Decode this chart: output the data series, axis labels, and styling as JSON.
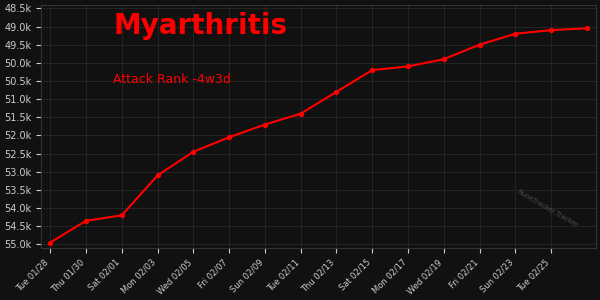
{
  "title": "Myarthritis",
  "subtitle": "Attack Rank -4w3d",
  "bg_color": "#111111",
  "grid_color": "#333333",
  "text_color": "#cccccc",
  "title_color": "#ff0000",
  "subtitle_color": "#ff0000",
  "line_color": "#ff0000",
  "marker_color": "#ff0000",
  "x_labels": [
    "Tue 01/28",
    "Thu 01/30",
    "Sat 02/01",
    "Mon 02/03",
    "Wed 02/05",
    "Fri 02/07",
    "Sun 02/09",
    "Tue 02/11",
    "Thu 02/13",
    "Sat 02/15",
    "Mon 02/17",
    "Wed 02/19",
    "Fri 02/21",
    "Sun 02/23",
    "Tue 02/25"
  ],
  "y_data": [
    54950,
    54350,
    54200,
    53100,
    52450,
    52050,
    51700,
    51400,
    50800,
    50200,
    50100,
    49900,
    49500,
    49200,
    49100,
    49050
  ],
  "x_data": [
    0,
    2,
    4,
    6,
    8,
    10,
    12,
    14,
    16,
    18,
    20,
    22,
    24,
    26,
    28,
    30
  ],
  "yticks": [
    48500,
    49000,
    49500,
    50000,
    50500,
    51000,
    51500,
    52000,
    52500,
    53000,
    53500,
    54000,
    54500,
    55000
  ],
  "ylim_min": 48400,
  "ylim_max": 55100,
  "watermark": "RuneTracker.Tracker"
}
